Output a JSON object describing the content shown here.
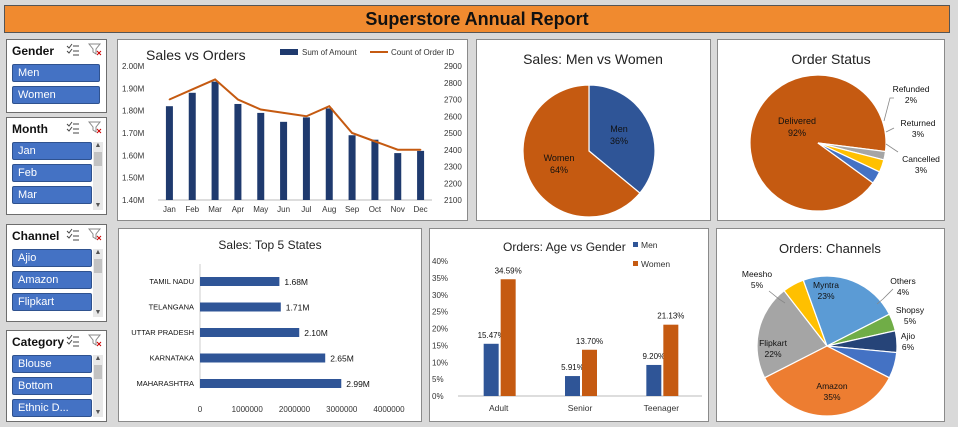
{
  "report_title": "Superstore Annual Report",
  "slicers": [
    {
      "title": "Gender",
      "items": [
        "Men",
        "Women"
      ]
    },
    {
      "title": "Month",
      "items": [
        "Jan",
        "Feb",
        "Mar"
      ]
    },
    {
      "title": "Channel",
      "items": [
        "Ajio",
        "Amazon",
        "Flipkart"
      ]
    },
    {
      "title": "Category",
      "items": [
        "Blouse",
        "Bottom",
        "Ethnic D..."
      ]
    }
  ],
  "colors": {
    "blue": "#1f3a6e",
    "orange": "#c55a11",
    "blue_mid": "#2f5597",
    "accent": "#f08a2f"
  },
  "chart_data": [
    {
      "type": "bar",
      "title": "Sales vs Orders",
      "categories": [
        "Jan",
        "Feb",
        "Mar",
        "Apr",
        "May",
        "Jun",
        "Jul",
        "Aug",
        "Sep",
        "Oct",
        "Nov",
        "Dec"
      ],
      "series": [
        {
          "name": "Sum of Amount",
          "type": "bar",
          "axis": "left",
          "values": [
            1.82,
            1.88,
            1.93,
            1.83,
            1.79,
            1.75,
            1.77,
            1.81,
            1.69,
            1.67,
            1.61,
            1.62
          ]
        },
        {
          "name": "Count of Order ID",
          "type": "line",
          "axis": "right",
          "values": [
            2700,
            2760,
            2820,
            2700,
            2640,
            2620,
            2600,
            2660,
            2500,
            2450,
            2400,
            2400
          ]
        }
      ],
      "y_left_ticks": [
        "2.00M",
        "1.90M",
        "1.80M",
        "1.70M",
        "1.60M",
        "1.50M",
        "1.40M"
      ],
      "ylim_left": [
        1.4,
        2.0
      ],
      "y_right_ticks": [
        "2900",
        "2800",
        "2700",
        "2600",
        "2500",
        "2400",
        "2300",
        "2200",
        "2100"
      ],
      "ylim_right": [
        2100,
        2900
      ],
      "legend": "top-right"
    },
    {
      "type": "pie",
      "title": "Sales: Men vs Women",
      "labels": [
        "Men",
        "Women"
      ],
      "values": [
        36,
        64
      ],
      "data_labels": [
        "36%",
        "64%"
      ]
    },
    {
      "type": "pie",
      "title": "Order Status",
      "labels": [
        "Delivered",
        "Refunded",
        "Returned",
        "Cancelled"
      ],
      "values": [
        92,
        2,
        3,
        3
      ],
      "data_labels": [
        "92%",
        "2%",
        "3%",
        "3%"
      ]
    },
    {
      "type": "bar",
      "orientation": "horizontal",
      "title": "Sales: Top 5 States",
      "categories": [
        "TAMIL NADU",
        "TELANGANA",
        "UTTAR PRADESH",
        "KARNATAKA",
        "MAHARASHTRA"
      ],
      "values": [
        1680000,
        1710000,
        2100000,
        2650000,
        2990000
      ],
      "data_labels": [
        "1.68M",
        "1.71M",
        "2.10M",
        "2.65M",
        "2.99M"
      ],
      "x_ticks": [
        "0",
        "1000000",
        "2000000",
        "3000000",
        "4000000"
      ],
      "xlim": [
        0,
        4000000
      ]
    },
    {
      "type": "bar",
      "title": "Orders: Age vs Gender",
      "categories": [
        "Adult",
        "Senior",
        "Teenager"
      ],
      "series": [
        {
          "name": "Men",
          "values": [
            15.47,
            5.91,
            9.2
          ],
          "data_labels": [
            "15.47%",
            "5.91%",
            "9.20%"
          ]
        },
        {
          "name": "Women",
          "values": [
            34.59,
            13.7,
            21.13
          ],
          "data_labels": [
            "34.59%",
            "13.70%",
            "21.13%"
          ]
        }
      ],
      "y_ticks": [
        "40%",
        "35%",
        "30%",
        "25%",
        "20%",
        "15%",
        "10%",
        "5%",
        "0%"
      ],
      "ylim": [
        0,
        40
      ],
      "legend": "top-right"
    },
    {
      "type": "pie",
      "title": "Orders: Channels",
      "labels": [
        "Amazon",
        "Flipkart",
        "Meesho",
        "Myntra",
        "Others",
        "Shopsy",
        "Ajio"
      ],
      "values": [
        35,
        22,
        5,
        23,
        4,
        5,
        6
      ],
      "data_labels": [
        "35%",
        "22%",
        "5%",
        "23%",
        "4%",
        "5%",
        "6%"
      ]
    }
  ]
}
